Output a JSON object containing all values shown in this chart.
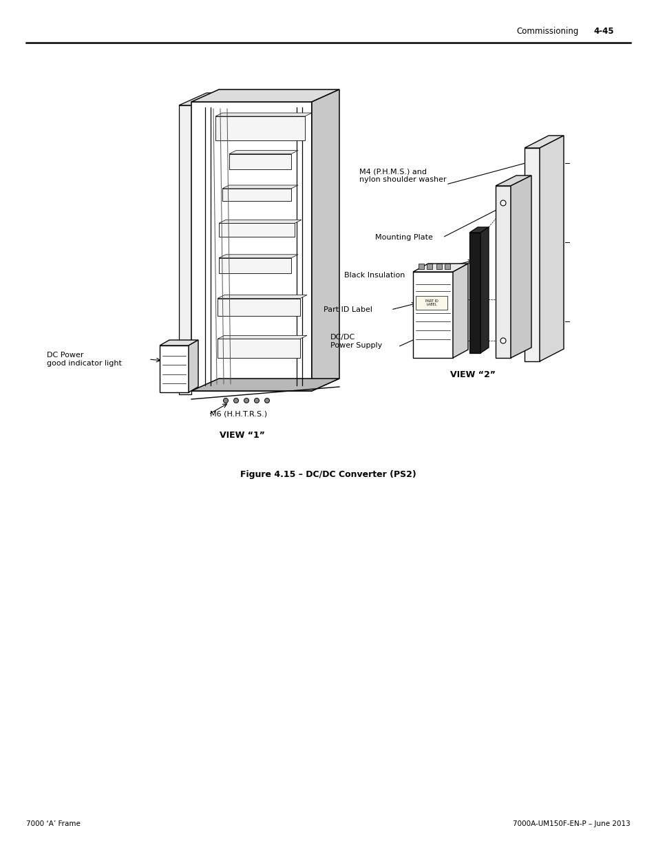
{
  "page_bg": "#ffffff",
  "header_text": "Commissioning",
  "header_page_num": "4-45",
  "footer_left": "7000 ‘A’ Frame",
  "footer_right": "7000A-UM150F-EN-P – June 2013",
  "figure_caption": "Figure 4.15 – DC/DC Converter (PS2)",
  "view1_label": "VIEW “1”",
  "view2_label": "VIEW “2”",
  "label_dc_power": "DC Power\ngood indicator light",
  "label_m6": "M6 (H.H.T.R.S.)",
  "label_m4": "M4 (P.H.M.S.) and\nnylon shoulder washer",
  "label_mounting": "Mounting Plate",
  "label_black_ins": "Black Insulation",
  "label_part_id": "Part ID Label",
  "label_dcdc": "DC/DC\nPower Supply",
  "font_family": "DejaVu Sans",
  "header_fontsize": 8.5,
  "label_fontsize": 8.0,
  "caption_fontsize": 9.0,
  "footer_fontsize": 7.5,
  "view_label_fontsize": 9.0
}
